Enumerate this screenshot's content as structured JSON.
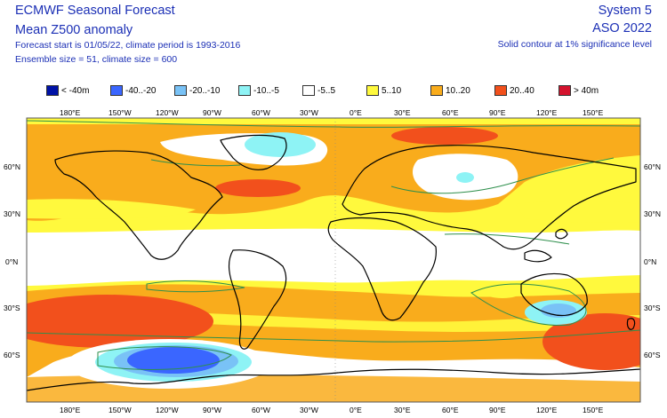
{
  "header": {
    "title": "ECMWF Seasonal Forecast",
    "subtitle": "Mean Z500 anomaly",
    "forecast_info": "Forecast start is 01/05/22, climate period is 1993-2016",
    "ensemble_info": "Ensemble size = 51, climate size = 600",
    "system": "System 5",
    "season": "ASO 2022",
    "contour_note": "Solid contour at 1% significance level"
  },
  "legend": [
    {
      "label": "< -40m",
      "color": "#0012a6"
    },
    {
      "label": "-40..-20",
      "color": "#3a66ff"
    },
    {
      "label": "-20..-10",
      "color": "#79c2f6"
    },
    {
      "label": "-10..-5",
      "color": "#8ef3f5"
    },
    {
      "label": "-5..5",
      "color": "#ffffff"
    },
    {
      "label": "5..10",
      "color": "#fff93d"
    },
    {
      "label": "10..20",
      "color": "#f9ac1c"
    },
    {
      "label": "20..40",
      "color": "#f2501c"
    },
    {
      "label": "> 40m",
      "color": "#d4132e"
    }
  ],
  "lon_labels": [
    "180°E",
    "150°W",
    "120°W",
    "90°W",
    "60°W",
    "30°W",
    "0°E",
    "30°E",
    "60°E",
    "90°E",
    "120°E",
    "150°E"
  ],
  "lat_labels": [
    "60°N",
    "30°N",
    "0°N",
    "30°S",
    "60°S"
  ],
  "colors": {
    "text": "#1b2fb5",
    "significance_contour": "#2e8f4c",
    "coastline": "#000000"
  }
}
